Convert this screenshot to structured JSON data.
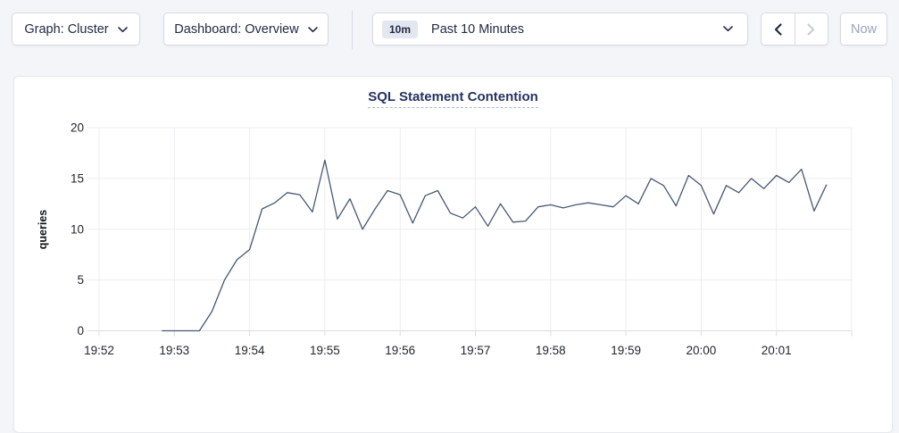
{
  "toolbar": {
    "graph_dropdown": {
      "label": "Graph: Cluster"
    },
    "dashboard_dropdown": {
      "label": "Dashboard: Overview"
    },
    "time_picker": {
      "badge": "10m",
      "label": "Past 10 Minutes"
    },
    "now_button_label": "Now"
  },
  "chart_data": {
    "type": "line",
    "title": "SQL Statement Contention",
    "xlabel": "",
    "ylabel": "queries",
    "ylim": [
      0,
      20
    ],
    "y_ticks": [
      0,
      5,
      10,
      15,
      20
    ],
    "x_tick_labels": [
      "19:52",
      "19:53",
      "19:54",
      "19:55",
      "19:56",
      "19:57",
      "19:58",
      "19:59",
      "20:00",
      "20:01"
    ],
    "x_axis_total_minutes": 10,
    "grid": true,
    "legend_position": "none",
    "line_color": "#475872",
    "grid_color": "#ecedf1",
    "axis_color": "#d8dbe1",
    "tick_text_color": "#23262d",
    "series": [
      {
        "name": "queries",
        "start_offset_seconds": 50,
        "interval_seconds": 10,
        "values": [
          0,
          0,
          0,
          0,
          1.9,
          5,
          7,
          8,
          12,
          12.6,
          13.6,
          13.4,
          11.7,
          16.8,
          11,
          13,
          10,
          12,
          13.8,
          13.4,
          10.6,
          13.3,
          13.8,
          11.6,
          11.1,
          12.2,
          10.3,
          12.5,
          10.7,
          10.8,
          12.2,
          12.4,
          12.1,
          12.4,
          12.6,
          12.4,
          12.2,
          13.3,
          12.5,
          15,
          14.3,
          12.3,
          15.3,
          14.3,
          11.5,
          14.3,
          13.6,
          15,
          14,
          15.3,
          14.6,
          15.9,
          11.8,
          14.4
        ]
      }
    ]
  }
}
